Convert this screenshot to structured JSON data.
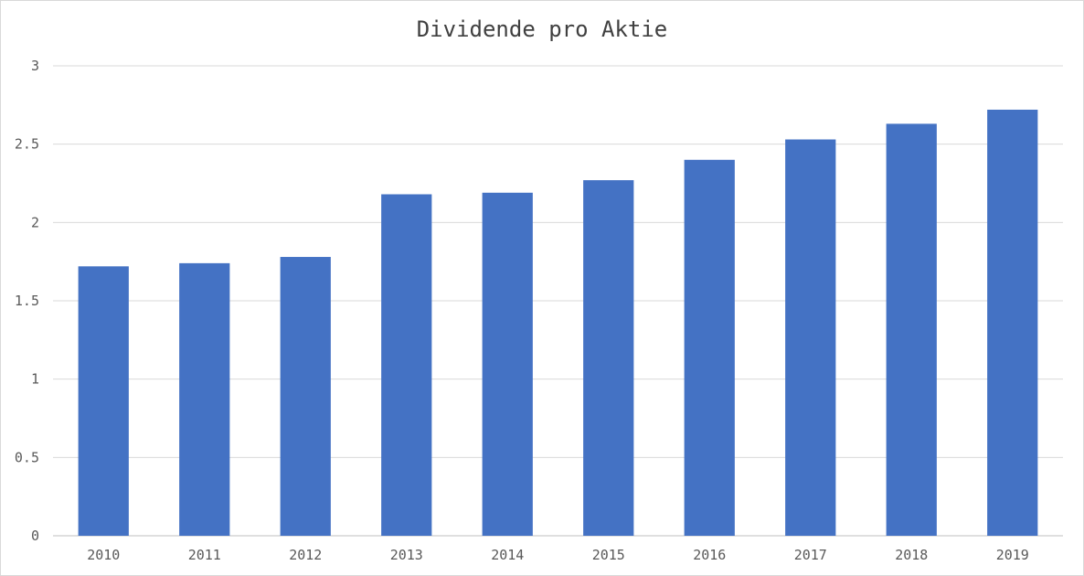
{
  "chart_data": {
    "type": "bar",
    "title": "Dividende pro Aktie",
    "xlabel": "",
    "ylabel": "",
    "categories": [
      "2010",
      "2011",
      "2012",
      "2013",
      "2014",
      "2015",
      "2016",
      "2017",
      "2018",
      "2019"
    ],
    "values": [
      1.72,
      1.74,
      1.78,
      2.18,
      2.19,
      2.27,
      2.4,
      2.53,
      2.63,
      2.72
    ],
    "ylim": [
      0,
      3
    ],
    "yticks": [
      "0",
      "0.5",
      "1",
      "1.5",
      "2",
      "2.5",
      "3"
    ],
    "grid": true,
    "legend": "none",
    "bar_color": "#4472c4"
  }
}
